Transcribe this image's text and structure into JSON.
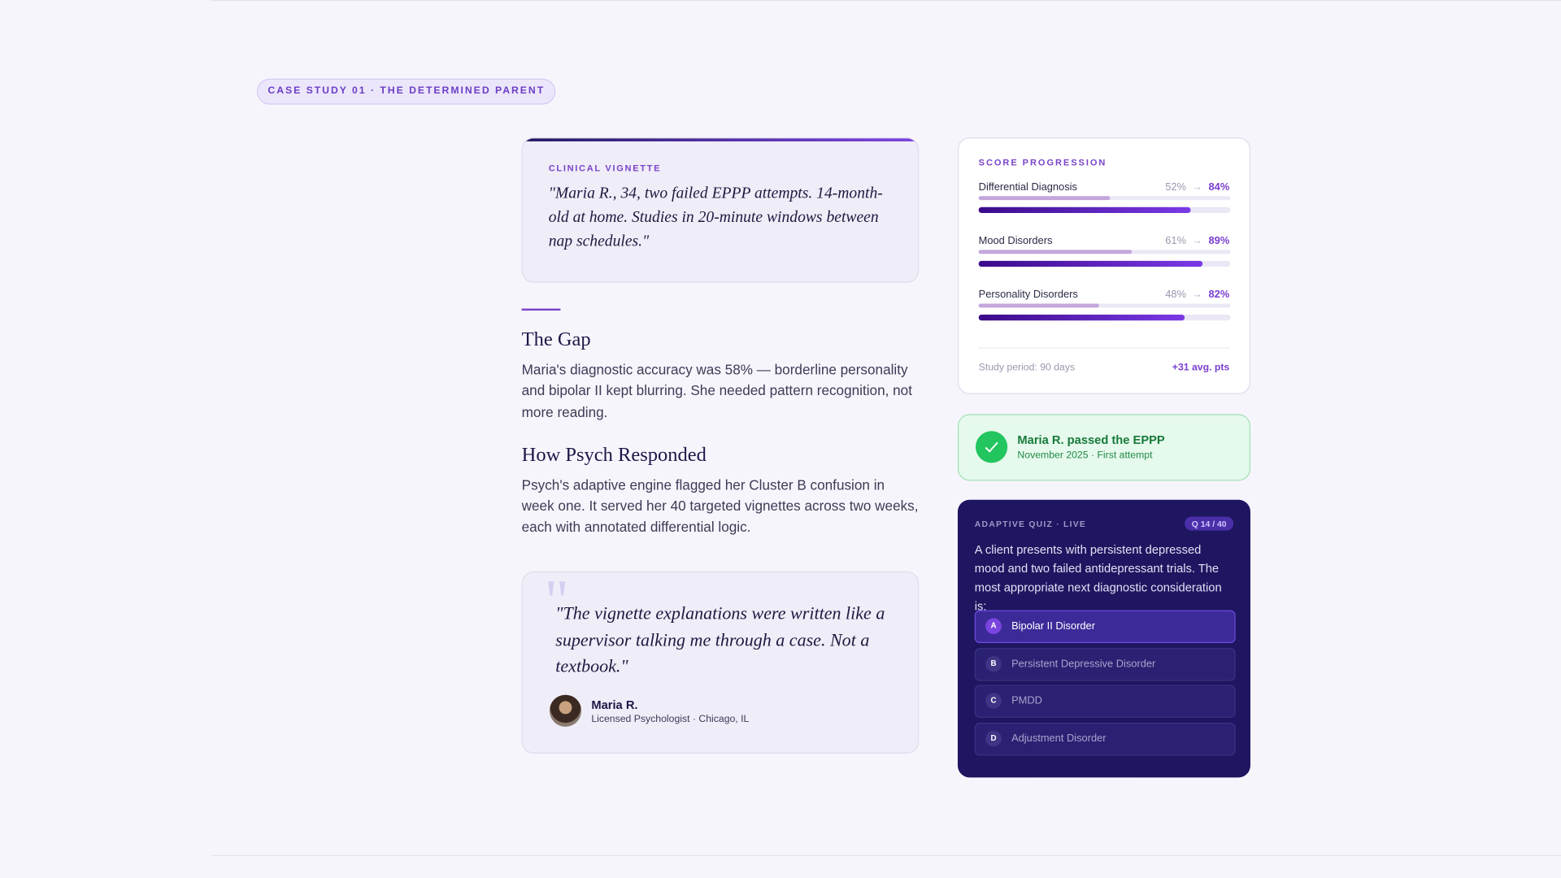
{
  "badge": "CASE STUDY 01 · THE DETERMINED PARENT",
  "vignette": {
    "label": "CLINICAL VIGNETTE",
    "quote": "\"Maria R., 34, two failed EPPP attempts. 14-month-old at home. Studies in 20-minute windows between nap schedules.\""
  },
  "sections": [
    {
      "heading": "The Gap",
      "body": "Maria's diagnostic accuracy was 58% — borderline personality and bipolar II kept blurring. She needed pattern recognition, not more reading."
    },
    {
      "heading": "How Psych Responded",
      "body": "Psych's adaptive engine flagged her Cluster B confusion in week one. It served her 40 targeted vignettes across two weeks, each with annotated differential logic."
    }
  ],
  "testimonial": {
    "quote_mark": "\"",
    "quote": "\"The vignette explanations were written like a supervisor talking me through a case. Not a textbook.\"",
    "name": "Maria R.",
    "role": "Licensed Psychologist · Chicago, IL"
  },
  "score": {
    "title": "SCORE PROGRESSION",
    "rows": [
      {
        "name": "Differential Diagnosis",
        "before": 52,
        "before_label": "52%",
        "after": 84,
        "after_label": "84%"
      },
      {
        "name": "Mood Disorders",
        "before": 61,
        "before_label": "61%",
        "after": 89,
        "after_label": "89%"
      },
      {
        "name": "Personality Disorders",
        "before": 48,
        "before_label": "48%",
        "after": 82,
        "after_label": "82%"
      }
    ],
    "footer_left": "Study period: 90 days",
    "footer_right": "+31 avg. pts"
  },
  "result": {
    "title": "Maria R. passed the EPPP",
    "subtitle": "November 2025 · First attempt"
  },
  "quiz": {
    "label": "ADAPTIVE QUIZ · LIVE",
    "progress": "Q 14 / 40",
    "question": "A client presents with persistent depressed mood and two failed antidepressant trials. The most appropriate next diagnostic consideration is:",
    "options": [
      {
        "letter": "A",
        "text": "Bipolar II Disorder"
      },
      {
        "letter": "B",
        "text": "Persistent Depressive Disorder"
      },
      {
        "letter": "C",
        "text": "PMDD"
      },
      {
        "letter": "D",
        "text": "Adjustment Disorder"
      }
    ]
  }
}
